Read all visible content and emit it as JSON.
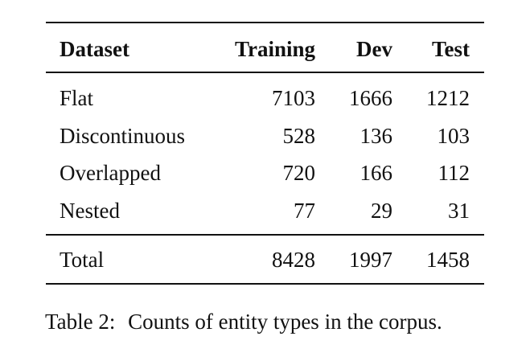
{
  "table": {
    "columns": [
      "Dataset",
      "Training",
      "Dev",
      "Test"
    ],
    "rows": [
      [
        "Flat",
        "7103",
        "1666",
        "1212"
      ],
      [
        "Discontinuous",
        "528",
        "136",
        "103"
      ],
      [
        "Overlapped",
        "720",
        "166",
        "112"
      ],
      [
        "Nested",
        "77",
        "29",
        "31"
      ]
    ],
    "total": [
      "Total",
      "8428",
      "1997",
      "1458"
    ]
  },
  "caption": {
    "label": "Table 2:",
    "text": "Counts of entity types in the corpus."
  }
}
